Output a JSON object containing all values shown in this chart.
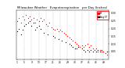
{
  "title": "Milwaukee Weather   Evapotranspiration   per Day (Inches)",
  "background_color": "#ffffff",
  "plot_bg_color": "#ffffff",
  "left_panel_color": "#404040",
  "grid_color": "#888888",
  "xlim": [
    0.5,
    52
  ],
  "ylim": [
    0.0,
    0.32
  ],
  "yticks": [
    0.05,
    0.1,
    0.15,
    0.2,
    0.25,
    0.3
  ],
  "ytick_labels": [
    "0.05",
    "0.10",
    "0.15",
    "0.20",
    "0.25",
    "0.30"
  ],
  "xtick_positions": [
    1,
    5,
    9,
    13,
    17,
    21,
    25,
    29,
    33,
    37,
    41,
    45,
    49
  ],
  "xtick_labels": [
    "1",
    "5",
    "9",
    "13",
    "17",
    "21",
    "25",
    "29",
    "33",
    "37",
    "41",
    "45",
    "49"
  ],
  "vgrid_positions": [
    5,
    9,
    13,
    17,
    21,
    25,
    29,
    33,
    37,
    41,
    45,
    49
  ],
  "legend_label_red": "ET",
  "legend_label_black": "Avg ET",
  "series_black_x": [
    1,
    2,
    3,
    4,
    5,
    6,
    7,
    8,
    9,
    10,
    11,
    12,
    13,
    14,
    16,
    18,
    21,
    22,
    24,
    26,
    28,
    30,
    31,
    32,
    33,
    34,
    35,
    37,
    38,
    39,
    40,
    41,
    42,
    43,
    44,
    45,
    46,
    47,
    48,
    49,
    50,
    51
  ],
  "series_black_y": [
    0.18,
    0.2,
    0.16,
    0.19,
    0.22,
    0.23,
    0.24,
    0.25,
    0.22,
    0.24,
    0.19,
    0.21,
    0.22,
    0.2,
    0.17,
    0.16,
    0.15,
    0.14,
    0.13,
    0.12,
    0.11,
    0.1,
    0.09,
    0.08,
    0.07,
    0.07,
    0.08,
    0.07,
    0.06,
    0.05,
    0.06,
    0.05,
    0.06,
    0.05,
    0.06,
    0.05,
    0.06,
    0.05,
    0.06,
    0.05,
    0.04,
    0.05
  ],
  "series_red_x": [
    1,
    2,
    3,
    4,
    5,
    6,
    7,
    8,
    9,
    10,
    11,
    12,
    13,
    14,
    15,
    16,
    17,
    18,
    19,
    20,
    21,
    22,
    23,
    24,
    25,
    26,
    27,
    28,
    29,
    30,
    31,
    32,
    33,
    34,
    35,
    36,
    37,
    38,
    39,
    40,
    41,
    42,
    43,
    44,
    45,
    46,
    47,
    48,
    49,
    50,
    51
  ],
  "series_red_y": [
    0.25,
    0.27,
    0.24,
    0.28,
    0.26,
    0.29,
    0.27,
    0.28,
    0.26,
    0.27,
    0.24,
    0.26,
    0.25,
    0.27,
    0.25,
    0.26,
    0.23,
    0.22,
    0.24,
    0.21,
    0.2,
    0.19,
    0.2,
    0.18,
    0.19,
    0.18,
    0.17,
    0.16,
    0.15,
    0.14,
    0.13,
    0.12,
    0.11,
    0.1,
    0.09,
    0.08,
    0.09,
    0.08,
    0.09,
    0.1,
    0.08,
    0.09,
    0.07,
    0.06,
    0.07,
    0.05,
    0.06,
    0.05,
    0.05,
    0.04,
    0.03
  ]
}
